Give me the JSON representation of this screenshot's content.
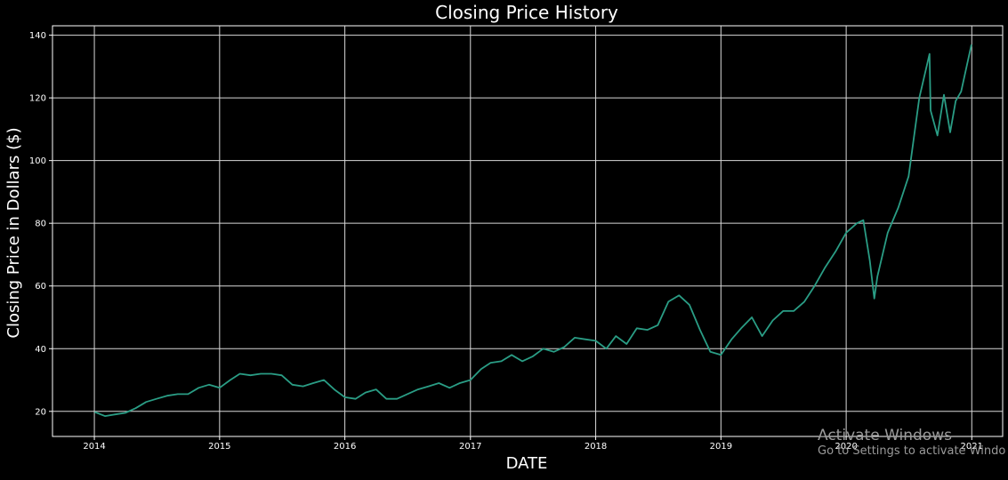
{
  "chart_data": {
    "type": "line",
    "title": "Closing Price History",
    "xlabel": "DATE",
    "ylabel": "Closing Price in Dollars ($)",
    "xlim": [
      "2013-09-01",
      "2021-04-01"
    ],
    "ylim": [
      12,
      143
    ],
    "grid": true,
    "x_ticks": [
      "2014",
      "2015",
      "2016",
      "2017",
      "2018",
      "2019",
      "2020",
      "2021"
    ],
    "y_ticks": [
      20,
      40,
      60,
      80,
      100,
      120,
      140
    ],
    "series": [
      {
        "color": "#2a9d85",
        "x": [
          "2014-01-02",
          "2014-02-01",
          "2014-03-01",
          "2014-04-01",
          "2014-05-01",
          "2014-06-01",
          "2014-07-01",
          "2014-08-01",
          "2014-09-01",
          "2014-10-01",
          "2014-11-01",
          "2014-12-01",
          "2015-01-01",
          "2015-02-01",
          "2015-03-01",
          "2015-04-01",
          "2015-05-01",
          "2015-06-01",
          "2015-07-01",
          "2015-08-01",
          "2015-09-01",
          "2015-10-01",
          "2015-11-01",
          "2015-12-01",
          "2016-01-01",
          "2016-02-01",
          "2016-03-01",
          "2016-04-01",
          "2016-05-01",
          "2016-06-01",
          "2016-07-01",
          "2016-08-01",
          "2016-09-01",
          "2016-10-01",
          "2016-11-01",
          "2016-12-01",
          "2017-01-01",
          "2017-02-01",
          "2017-03-01",
          "2017-04-01",
          "2017-05-01",
          "2017-06-01",
          "2017-07-01",
          "2017-08-01",
          "2017-09-01",
          "2017-10-01",
          "2017-11-01",
          "2017-12-01",
          "2018-01-01",
          "2018-02-01",
          "2018-03-01",
          "2018-04-01",
          "2018-05-01",
          "2018-06-01",
          "2018-07-01",
          "2018-08-01",
          "2018-09-01",
          "2018-10-01",
          "2018-11-01",
          "2018-12-01",
          "2019-01-01",
          "2019-02-01",
          "2019-03-01",
          "2019-04-01",
          "2019-05-01",
          "2019-06-01",
          "2019-07-01",
          "2019-08-01",
          "2019-09-01",
          "2019-10-01",
          "2019-11-01",
          "2019-12-01",
          "2020-01-01",
          "2020-02-01",
          "2020-02-20",
          "2020-03-10",
          "2020-03-23",
          "2020-04-01",
          "2020-05-01",
          "2020-06-01",
          "2020-07-01",
          "2020-08-01",
          "2020-08-31",
          "2020-09-03",
          "2020-09-23",
          "2020-10-12",
          "2020-10-30",
          "2020-11-15",
          "2020-12-01",
          "2020-12-31"
        ],
        "y": [
          19.8,
          18.5,
          19.0,
          19.5,
          21.0,
          23.0,
          24.0,
          25.0,
          25.5,
          25.5,
          27.5,
          28.5,
          27.5,
          30.0,
          32.0,
          31.5,
          32.0,
          32.0,
          31.5,
          28.5,
          28.0,
          29.0,
          30.0,
          27.0,
          24.5,
          24.0,
          26.0,
          27.0,
          24.0,
          24.0,
          25.5,
          27.0,
          28.0,
          29.0,
          27.5,
          29.0,
          30.0,
          33.5,
          35.5,
          36.0,
          38.0,
          36.0,
          37.5,
          40.0,
          39.0,
          40.5,
          43.5,
          43.0,
          42.5,
          40.0,
          44.0,
          41.5,
          46.5,
          46.0,
          47.5,
          55.0,
          57.0,
          54.0,
          46.0,
          39.0,
          38.0,
          43.0,
          46.5,
          50.0,
          44.0,
          49.0,
          52.0,
          52.0,
          55.0,
          60.0,
          66.0,
          71.0,
          77.0,
          80.0,
          81.0,
          68.0,
          56.0,
          63.0,
          77.0,
          85.0,
          95.0,
          120.0,
          134.0,
          116.0,
          108.0,
          121.0,
          109.0,
          119.0,
          122.0,
          137.0
        ]
      }
    ]
  },
  "watermark": {
    "title": "Activate Windows",
    "subtitle": "Go to Settings to activate Windo"
  }
}
